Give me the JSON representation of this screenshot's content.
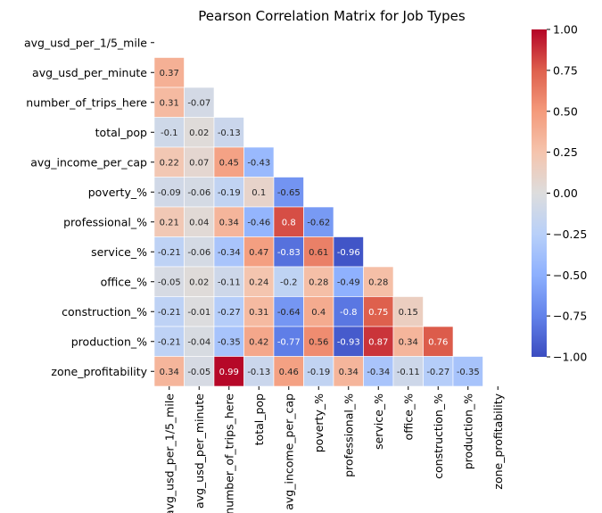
{
  "chart_data": {
    "type": "heatmap",
    "title": "Pearson Correlation Matrix for Job Types",
    "variables": [
      "avg_usd_per_1/5_mile",
      "avg_usd_per_minute",
      "number_of_trips_here",
      "total_pop",
      "avg_income_per_cap",
      "poverty_%",
      "professional_%",
      "service_%",
      "office_%",
      "construction_%",
      "production_%",
      "zone_profitability"
    ],
    "mask": "upper-triangle including diagonal",
    "matrix": [
      [],
      [
        0.37
      ],
      [
        0.31,
        -0.07
      ],
      [
        -0.1,
        0.02,
        -0.13
      ],
      [
        0.22,
        0.07,
        0.45,
        -0.43
      ],
      [
        -0.09,
        -0.06,
        -0.19,
        0.1,
        -0.65
      ],
      [
        0.21,
        0.04,
        0.34,
        -0.46,
        0.8,
        -0.62
      ],
      [
        -0.21,
        -0.06,
        -0.34,
        0.47,
        -0.83,
        0.61,
        -0.96
      ],
      [
        -0.05,
        0.02,
        -0.11,
        0.24,
        -0.2,
        0.28,
        -0.49,
        0.28
      ],
      [
        -0.21,
        -0.01,
        -0.27,
        0.31,
        -0.64,
        0.4,
        -0.8,
        0.75,
        0.15
      ],
      [
        -0.21,
        -0.04,
        -0.35,
        0.42,
        -0.77,
        0.56,
        -0.93,
        0.87,
        0.34,
        0.76
      ],
      [
        0.34,
        -0.05,
        0.99,
        -0.13,
        0.46,
        -0.19,
        0.34,
        -0.34,
        -0.11,
        -0.27,
        -0.35
      ]
    ],
    "colormap": "coolwarm",
    "colorbar": {
      "vmin": -1.0,
      "vmax": 1.0,
      "ticks": [
        "1.00",
        "0.75",
        "0.50",
        "0.25",
        "0.00",
        "−0.25",
        "−0.50",
        "−0.75",
        "−1.00"
      ],
      "tick_values": [
        1.0,
        0.75,
        0.5,
        0.25,
        0.0,
        -0.25,
        -0.5,
        -0.75,
        -1.0
      ]
    },
    "grid": false
  }
}
